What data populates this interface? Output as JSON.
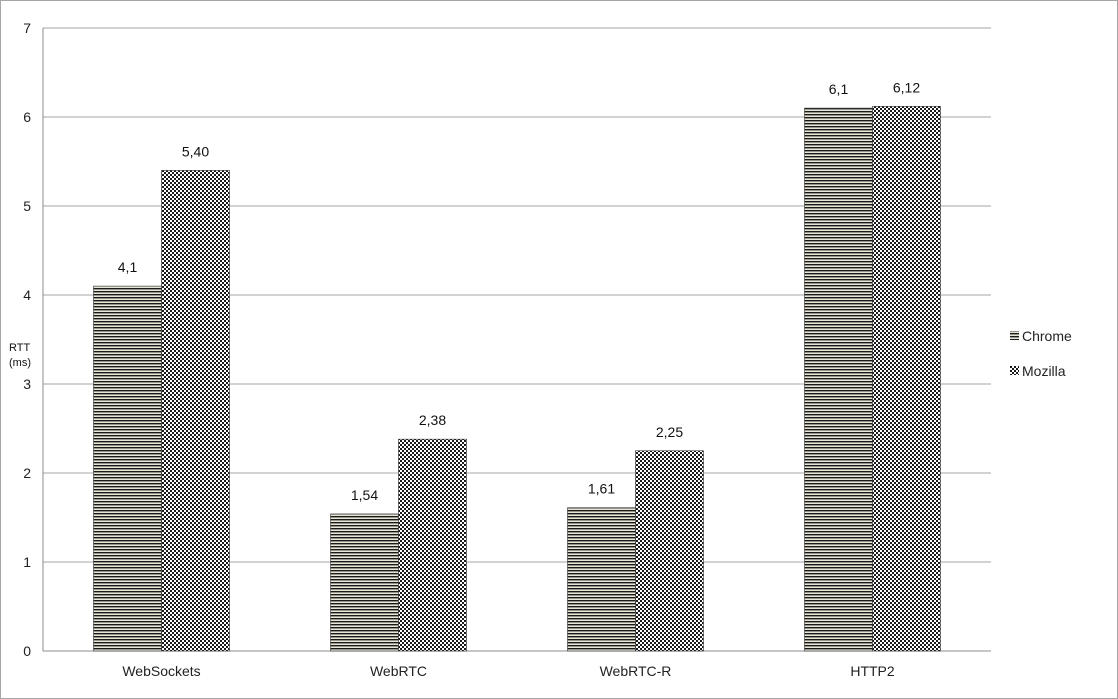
{
  "chart_data": {
    "type": "bar",
    "title": "",
    "xlabel": "",
    "ylabel_line1": "RTT",
    "ylabel_line2": "(ms)",
    "ylim": [
      0,
      7
    ],
    "yticks": [
      "0",
      "1",
      "2",
      "3",
      "4",
      "5",
      "6",
      "7"
    ],
    "grid": true,
    "legend_position": "right",
    "categories": [
      "WebSockets",
      "WebRTC",
      "WebRTC-R",
      "HTTP2"
    ],
    "series": [
      {
        "name": "Chrome",
        "pattern": "horizontal-stripes",
        "values": [
          4.1,
          1.54,
          1.61,
          6.1
        ],
        "labels": [
          "4,1",
          "1,54",
          "1,61",
          "6,1"
        ]
      },
      {
        "name": "Mozilla",
        "pattern": "checkerboard",
        "values": [
          5.4,
          2.38,
          2.25,
          6.12
        ],
        "labels": [
          "5,40",
          "2,38",
          "2,25",
          "6,12"
        ]
      }
    ],
    "colors": {
      "dark": "#1a1a1a",
      "light": "#e8e6d6",
      "grid": "#a6a6a6"
    }
  }
}
